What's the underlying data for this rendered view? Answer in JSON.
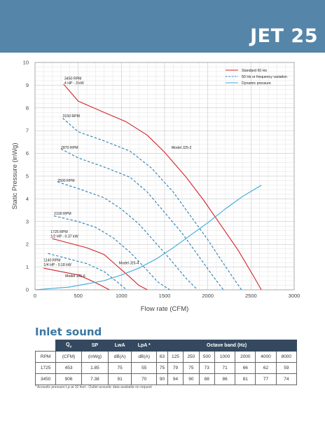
{
  "header": {
    "title": "JET 25"
  },
  "chart_data": {
    "type": "line",
    "xlabel": "Flow rate (CFM)",
    "ylabel": "Static Pressure (inWg)",
    "xlim": [
      0,
      3000
    ],
    "ylim": [
      0,
      10
    ],
    "xticks": [
      0,
      500,
      1000,
      1500,
      2000,
      2500,
      3000
    ],
    "yticks": [
      0,
      1,
      2,
      3,
      4,
      5,
      6,
      7,
      8,
      9,
      10
    ],
    "grid": true,
    "legend_position": "top-right",
    "legend": [
      {
        "label": "Standard 60 Hz",
        "color": "#d3232a",
        "style": "solid"
      },
      {
        "label": "50 Hz or frequency variation",
        "color": "#2a7fb5",
        "style": "dashed"
      },
      {
        "label": "Dynamic pressure",
        "color": "#3aa9d8",
        "style": "solid"
      }
    ],
    "series": [
      {
        "name": "3450 RPM",
        "color": "#d3232a",
        "style": "solid",
        "points": [
          [
            330,
            9.05
          ],
          [
            500,
            8.3
          ],
          [
            800,
            7.8
          ],
          [
            1050,
            7.4
          ],
          [
            1300,
            6.8
          ],
          [
            1500,
            6.05
          ],
          [
            1750,
            4.95
          ],
          [
            1950,
            3.95
          ],
          [
            2150,
            2.85
          ],
          [
            2350,
            1.75
          ],
          [
            2530,
            0.6
          ],
          [
            2620,
            0
          ]
        ]
      },
      {
        "name": "3150 RPM",
        "color": "#2a7fb5",
        "style": "dashed",
        "points": [
          [
            320,
            7.55
          ],
          [
            500,
            6.95
          ],
          [
            800,
            6.55
          ],
          [
            1100,
            6.1
          ],
          [
            1350,
            5.35
          ],
          [
            1600,
            4.3
          ],
          [
            1800,
            3.25
          ],
          [
            2000,
            2.2
          ],
          [
            2200,
            1.05
          ],
          [
            2390,
            0
          ]
        ]
      },
      {
        "name": "2870 RPM",
        "color": "#2a7fb5",
        "style": "dashed",
        "points": [
          [
            300,
            6.2
          ],
          [
            500,
            5.8
          ],
          [
            800,
            5.4
          ],
          [
            1100,
            4.95
          ],
          [
            1300,
            4.3
          ],
          [
            1500,
            3.4
          ],
          [
            1700,
            2.5
          ],
          [
            1900,
            1.45
          ],
          [
            2060,
            0.6
          ],
          [
            2180,
            0
          ]
        ]
      },
      {
        "name": "2500 RPM",
        "color": "#2a7fb5",
        "style": "dashed",
        "points": [
          [
            260,
            4.75
          ],
          [
            500,
            4.45
          ],
          [
            800,
            4.05
          ],
          [
            1000,
            3.55
          ],
          [
            1200,
            2.9
          ],
          [
            1400,
            2.05
          ],
          [
            1550,
            1.4
          ],
          [
            1750,
            0.5
          ],
          [
            1880,
            0
          ]
        ]
      },
      {
        "name": "2100 RPM",
        "color": "#2a7fb5",
        "style": "dashed",
        "points": [
          [
            220,
            3.25
          ],
          [
            500,
            3.0
          ],
          [
            700,
            2.75
          ],
          [
            900,
            2.3
          ],
          [
            1100,
            1.65
          ],
          [
            1300,
            0.85
          ],
          [
            1420,
            0.35
          ],
          [
            1560,
            0
          ]
        ]
      },
      {
        "name": "1725 RPM",
        "color": "#d3232a",
        "style": "solid",
        "points": [
          [
            200,
            2.25
          ],
          [
            400,
            2.05
          ],
          [
            600,
            1.85
          ],
          [
            800,
            1.55
          ],
          [
            950,
            1.05
          ],
          [
            1100,
            0.55
          ],
          [
            1200,
            0.2
          ],
          [
            1300,
            0
          ]
        ]
      },
      {
        "name": "1480 RPM",
        "color": "#2a7fb5",
        "style": "dashed",
        "points": [
          [
            150,
            1.6
          ],
          [
            400,
            1.35
          ],
          [
            600,
            1.15
          ],
          [
            800,
            0.8
          ],
          [
            950,
            0.35
          ],
          [
            1060,
            0
          ]
        ]
      },
      {
        "name": "1140 RPM",
        "color": "#d3232a",
        "style": "solid",
        "points": [
          [
            100,
            0.95
          ],
          [
            300,
            0.8
          ],
          [
            500,
            0.65
          ],
          [
            650,
            0.4
          ],
          [
            760,
            0.2
          ],
          [
            860,
            0
          ]
        ]
      },
      {
        "name": "Dynamic pressure",
        "color": "#3aa9d8",
        "style": "solid",
        "points": [
          [
            0,
            0
          ],
          [
            400,
            0.12
          ],
          [
            800,
            0.4
          ],
          [
            1000,
            0.65
          ],
          [
            1200,
            0.95
          ],
          [
            1400,
            1.35
          ],
          [
            1600,
            1.85
          ],
          [
            1800,
            2.4
          ],
          [
            2000,
            2.95
          ],
          [
            2200,
            3.55
          ],
          [
            2400,
            4.1
          ],
          [
            2620,
            4.6
          ]
        ]
      }
    ],
    "annotations": [
      {
        "x": 340,
        "y": 9.25,
        "lines": [
          "3450 RPM",
          "4 HP - 3 kW"
        ]
      },
      {
        "x": 320,
        "y": 7.6,
        "lines": [
          "3150 RPM"
        ]
      },
      {
        "x": 300,
        "y": 6.2,
        "lines": [
          "2870 RPM"
        ]
      },
      {
        "x": 260,
        "y": 4.75,
        "lines": [
          "2500 RPM"
        ]
      },
      {
        "x": 220,
        "y": 3.3,
        "lines": [
          "2100 RPM"
        ]
      },
      {
        "x": 180,
        "y": 2.5,
        "lines": [
          "1725 RPM",
          "1/2 HP - 0.37 kW"
        ]
      },
      {
        "x": 100,
        "y": 1.25,
        "lines": [
          "1140 RPM",
          "1/4 HP - 0.18 kW"
        ]
      },
      {
        "x": 1580,
        "y": 6.2,
        "lines": [
          "Model J25-2"
        ]
      },
      {
        "x": 970,
        "y": 1.12,
        "lines": [
          "Model J25-4"
        ]
      },
      {
        "x": 350,
        "y": 0.55,
        "lines": [
          "Model J25-6"
        ]
      }
    ]
  },
  "inlet_sound": {
    "title": "Inlet sound",
    "headers": [
      "Qv",
      "SP",
      "LwA",
      "LpA *",
      "Octave band (Hz)"
    ],
    "units": [
      "RPM",
      "(CFM)",
      "(inWg)",
      "dB(A)",
      "dB(A)",
      "63",
      "125",
      "250",
      "500",
      "1000",
      "2000",
      "4000",
      "8000"
    ],
    "rows": [
      [
        "1725",
        "453",
        "1.85",
        "75",
        "55",
        "75",
        "79",
        "75",
        "73",
        "71",
        "66",
        "62",
        "59"
      ],
      [
        "3450",
        "906",
        "7.38",
        "91",
        "70",
        "90",
        "94",
        "90",
        "88",
        "86",
        "81",
        "77",
        "74"
      ]
    ],
    "footnote": "* Acoustic pressure Lp at 10 feet - Outlet acoustic data available on request"
  }
}
